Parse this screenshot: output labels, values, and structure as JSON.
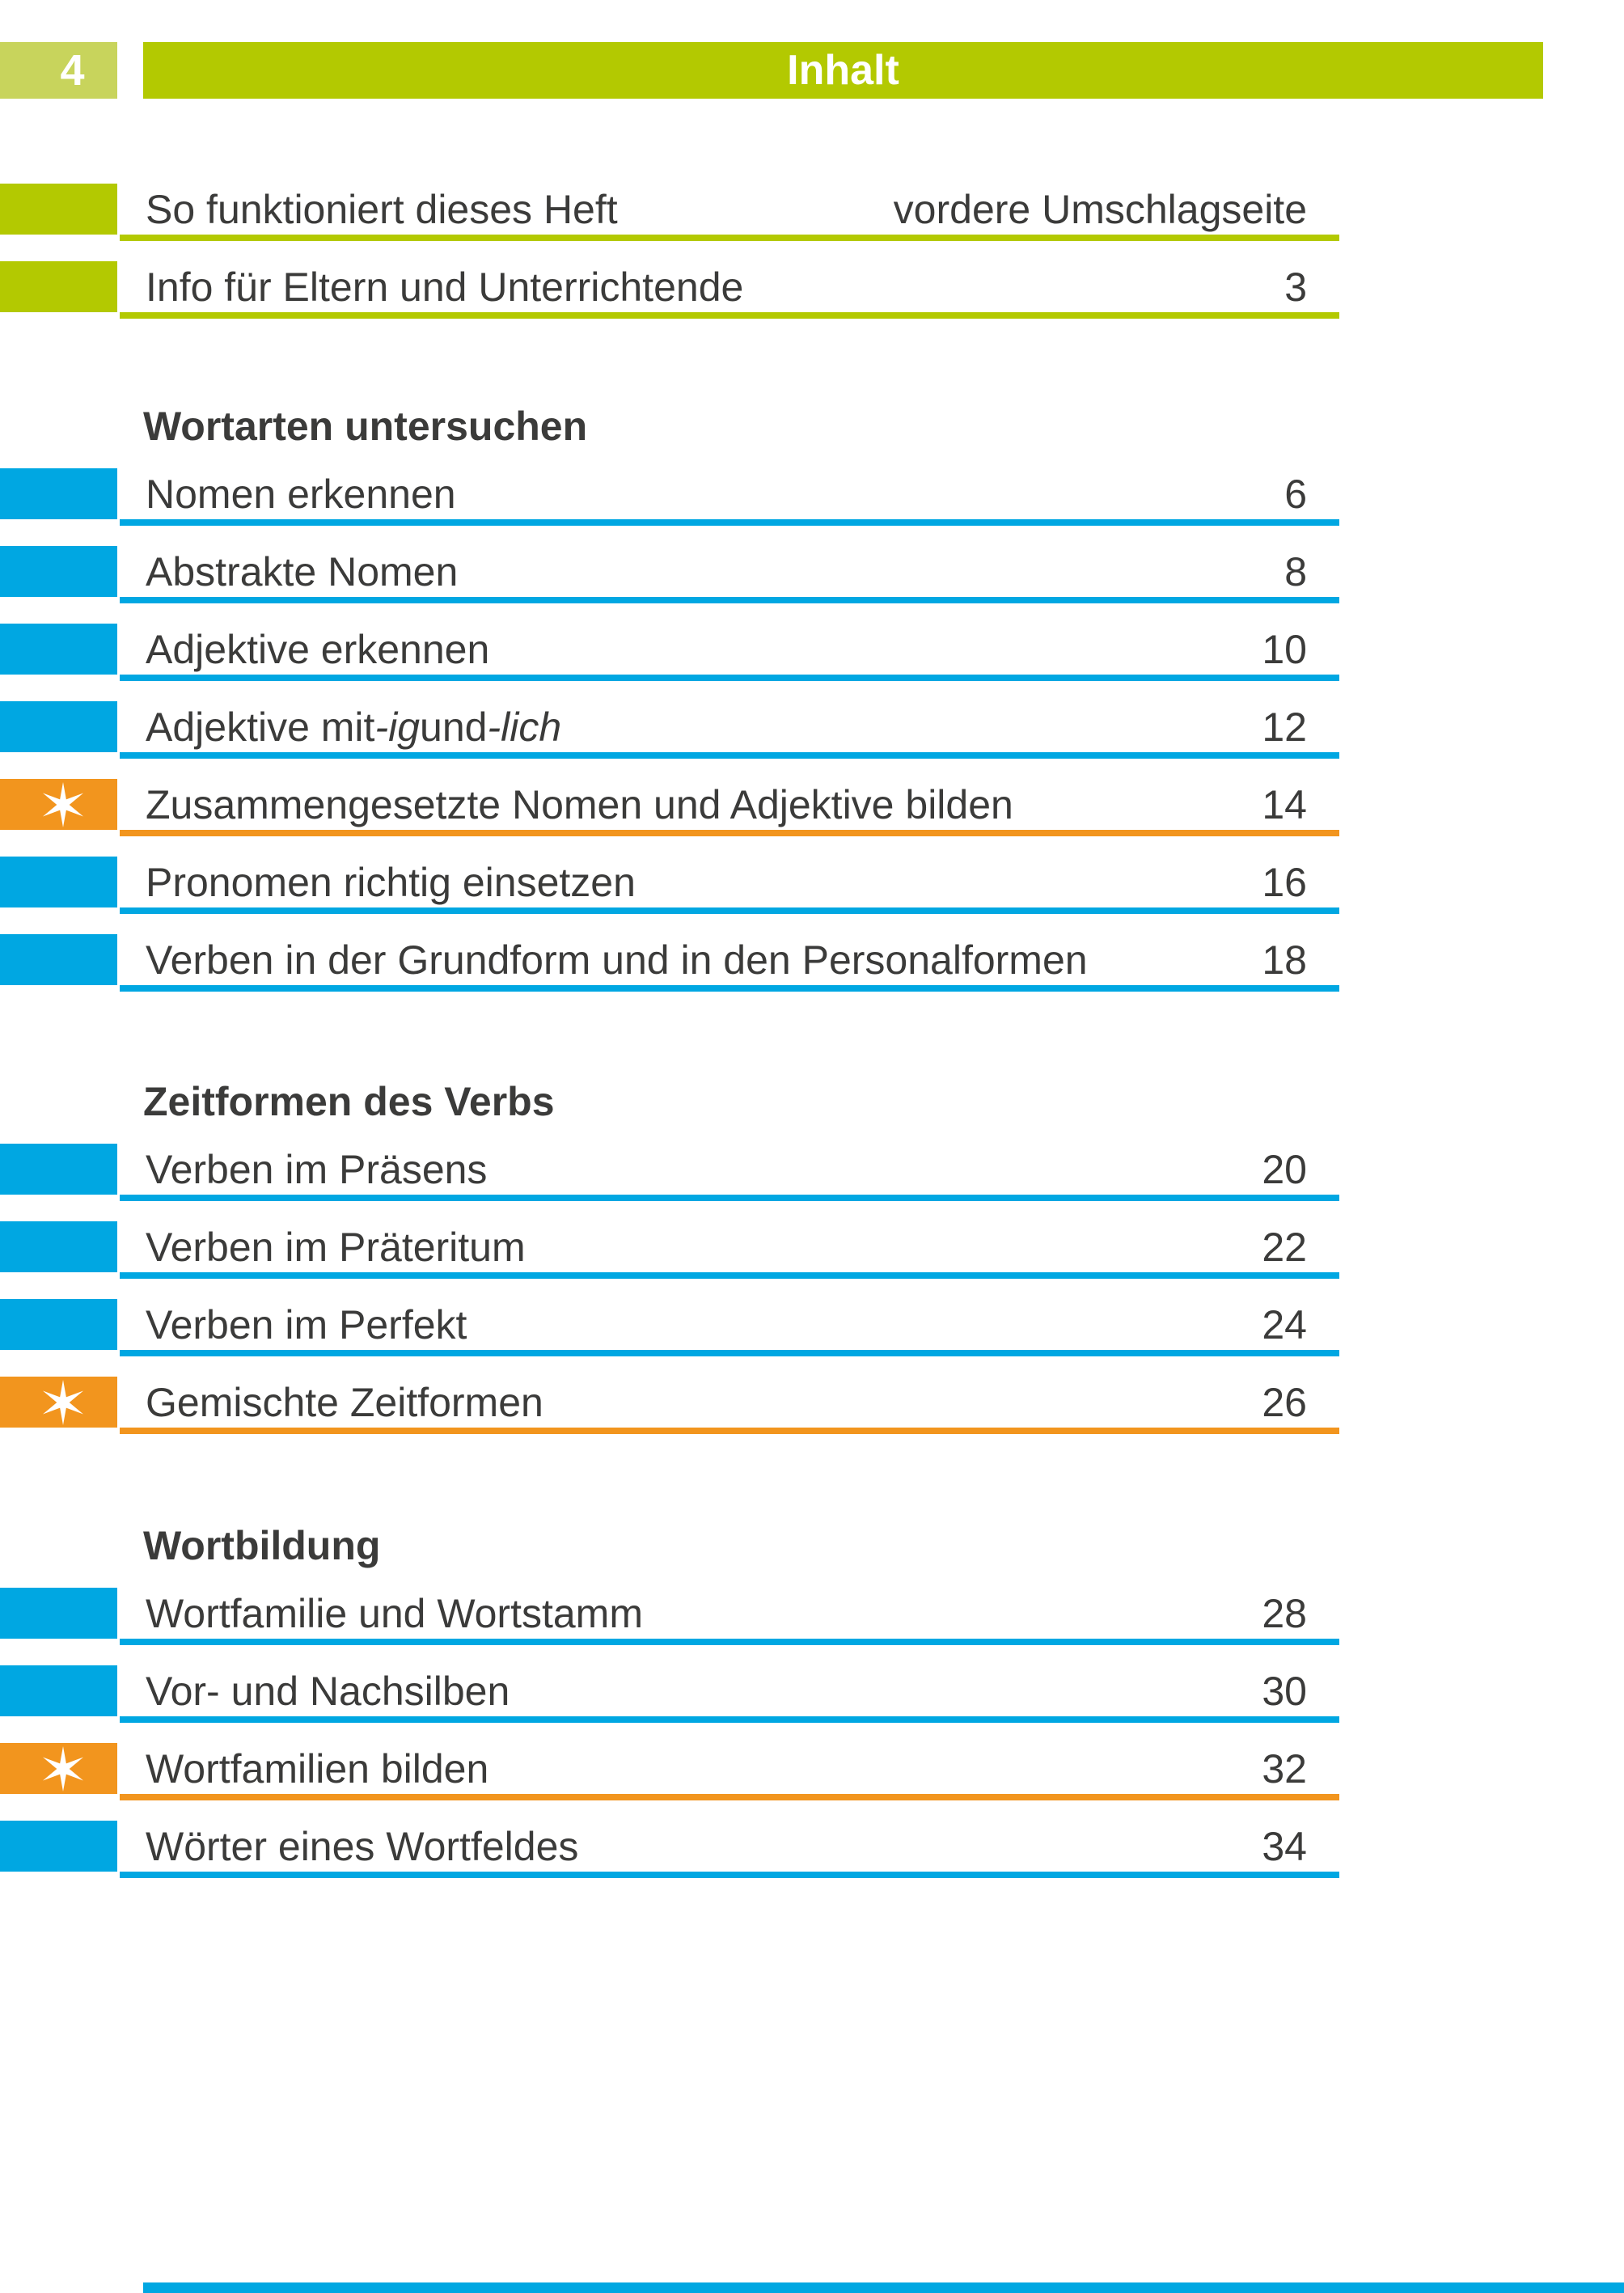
{
  "page_header": {
    "page_number": "4",
    "title": "Inhalt"
  },
  "colors": {
    "green": "#b3c901",
    "green_light": "#c8d45c",
    "blue": "#00a7e2",
    "orange": "#f2951e",
    "text": "#3b3b3a",
    "star": "#ffffff"
  },
  "icons": {
    "star": "six-point-sparkle-star"
  },
  "intro_rows": [
    {
      "title": "So funktioniert dieses Heft",
      "page": "vordere Umschlagseite",
      "color": "green",
      "star": false
    },
    {
      "title": "Info für Eltern und Unterrichtende",
      "page": "3",
      "color": "green",
      "star": false
    }
  ],
  "sections": [
    {
      "heading": "Wortarten untersuchen",
      "rows": [
        {
          "title": "Nomen erkennen",
          "page": "6",
          "color": "blue",
          "star": false
        },
        {
          "title": "Abstrakte Nomen",
          "page": "8",
          "color": "blue",
          "star": false
        },
        {
          "title": "Adjektive erkennen",
          "page": "10",
          "color": "blue",
          "star": false
        },
        {
          "title_parts": [
            {
              "text": "Adjektive mit "
            },
            {
              "text": "-ig",
              "italic": true
            },
            {
              "text": " und "
            },
            {
              "text": "-lich",
              "italic": true
            }
          ],
          "page": "12",
          "color": "blue",
          "star": false
        },
        {
          "title": "Zusammengesetzte Nomen und Adjektive bilden",
          "page": "14",
          "color": "orange",
          "star": true
        },
        {
          "title": "Pronomen richtig einsetzen",
          "page": "16",
          "color": "blue",
          "star": false
        },
        {
          "title": "Verben in der Grundform und in den Personalformen",
          "page": "18",
          "color": "blue",
          "star": false
        }
      ]
    },
    {
      "heading": "Zeitformen des Verbs",
      "rows": [
        {
          "title": "Verben im Präsens",
          "page": "20",
          "color": "blue",
          "star": false
        },
        {
          "title": "Verben im Präteritum",
          "page": "22",
          "color": "blue",
          "star": false
        },
        {
          "title": "Verben im Perfekt",
          "page": "24",
          "color": "blue",
          "star": false
        },
        {
          "title": "Gemischte Zeitformen",
          "page": "26",
          "color": "orange",
          "star": true
        }
      ]
    },
    {
      "heading": "Wortbildung",
      "rows": [
        {
          "title": "Wortfamilie und Wortstamm",
          "page": "28",
          "color": "blue",
          "star": false
        },
        {
          "title": "Vor- und Nachsilben",
          "page": "30",
          "color": "blue",
          "star": false
        },
        {
          "title": "Wortfamilien bilden",
          "page": "32",
          "color": "orange",
          "star": true
        },
        {
          "title": "Wörter eines Wortfeldes",
          "page": "34",
          "color": "blue",
          "star": false
        }
      ]
    }
  ],
  "footer": {
    "rule_color": "blue"
  }
}
